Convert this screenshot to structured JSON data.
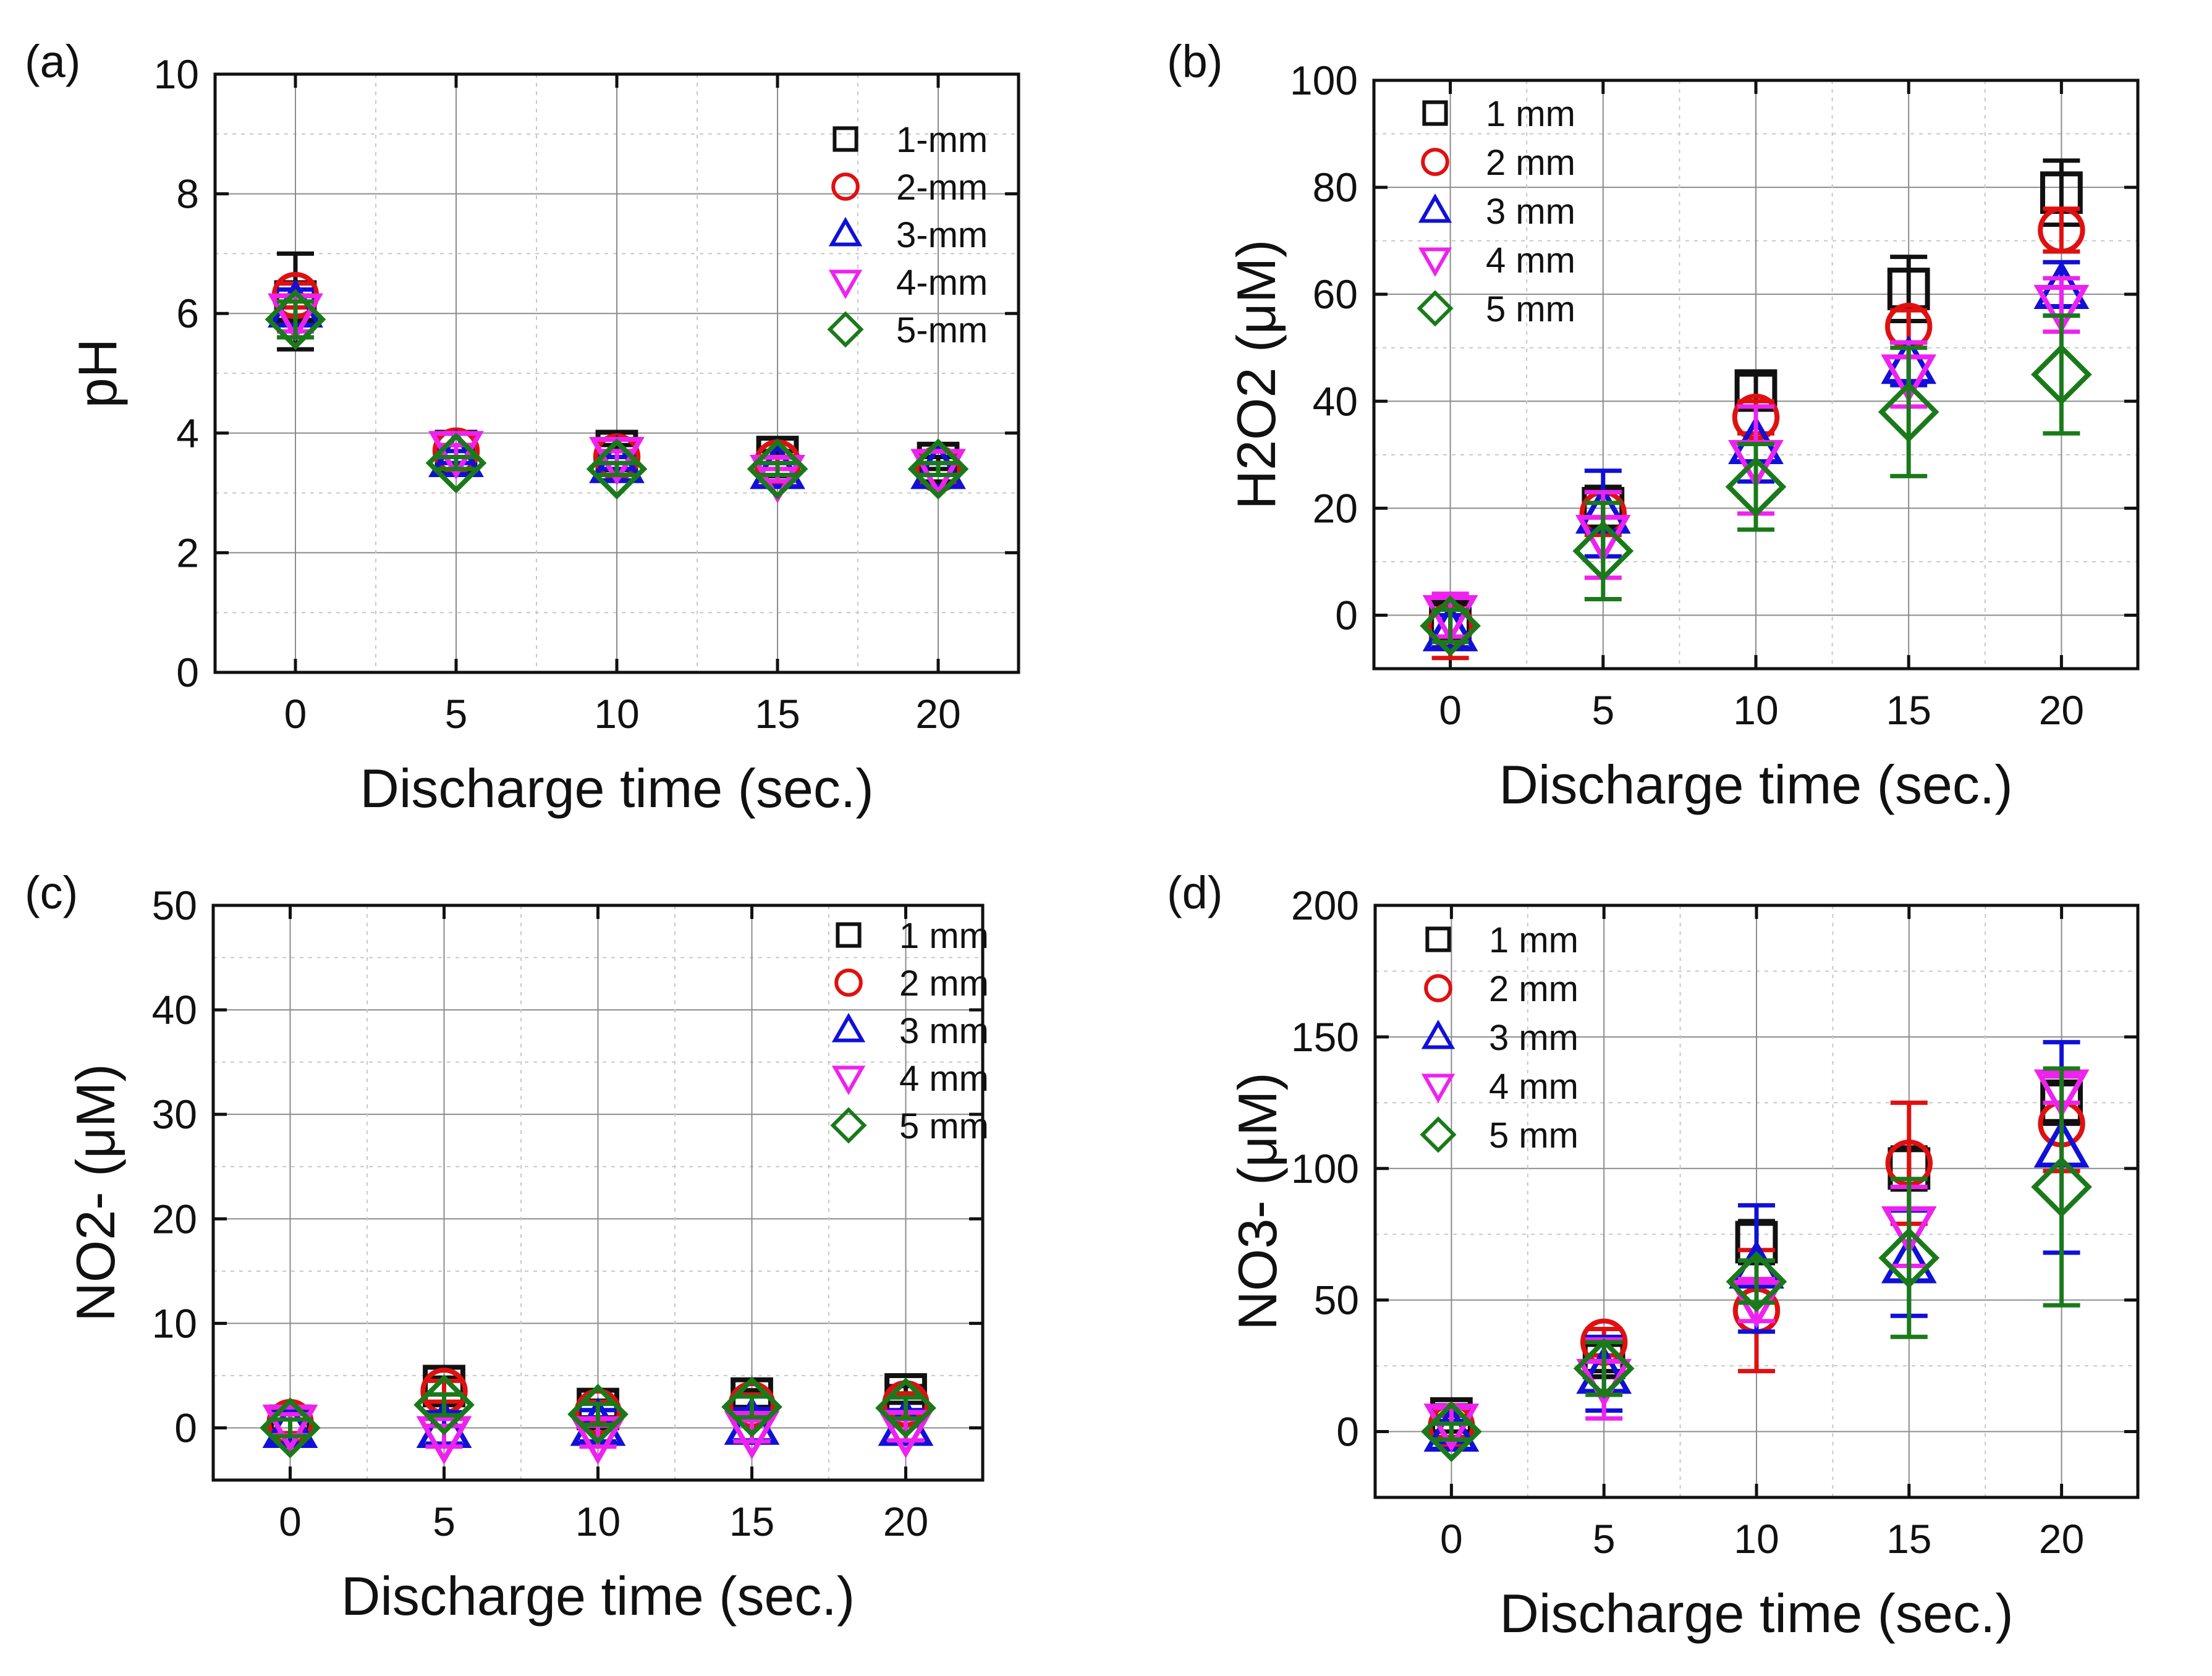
{
  "figure": {
    "palette": {
      "black": "#111111",
      "red": "#e01010",
      "blue": "#1010d8",
      "magenta": "#ee22ee",
      "green": "#1a7a1a",
      "grid_major": "#8c8c8c",
      "grid_minor": "#c8c8c8"
    }
  },
  "chart_data": [
    {
      "panel_label": "(a)",
      "type": "scatter",
      "xlabel": "Discharge time (sec.)",
      "ylabel": "pH",
      "x": [
        0,
        5,
        10,
        15,
        20
      ],
      "xticks": [
        "0",
        "5",
        "10",
        "15",
        "20"
      ],
      "xlim": [
        -2.5,
        22.5
      ],
      "ylim": [
        0,
        10
      ],
      "yticks": [
        "0",
        "2",
        "4",
        "6",
        "8",
        "10"
      ],
      "ytick_values": [
        0,
        2,
        4,
        6,
        8,
        10
      ],
      "grid": true,
      "legend_position": "top-right",
      "series": [
        {
          "name": "1-mm",
          "marker": "square",
          "color": "#111111",
          "values": [
            6.2,
            3.7,
            3.7,
            3.6,
            3.5
          ],
          "errors": [
            0.8,
            0.1,
            0.1,
            0.1,
            0.1
          ]
        },
        {
          "name": "2-mm",
          "marker": "circle",
          "color": "#e01010",
          "values": [
            6.3,
            3.7,
            3.6,
            3.5,
            3.4
          ],
          "errors": [
            0.2,
            0.1,
            0.1,
            0.1,
            0.1
          ]
        },
        {
          "name": "3-mm",
          "marker": "triangle-up",
          "color": "#1010d8",
          "values": [
            6.1,
            3.6,
            3.5,
            3.4,
            3.4
          ],
          "errors": [
            0.3,
            0.1,
            0.1,
            0.1,
            0.1
          ]
        },
        {
          "name": "4-mm",
          "marker": "triangle-down",
          "color": "#ee22ee",
          "values": [
            6.0,
            3.7,
            3.6,
            3.3,
            3.4
          ],
          "errors": [
            0.3,
            0.1,
            0.1,
            0.1,
            0.1
          ]
        },
        {
          "name": "5-mm",
          "marker": "diamond",
          "color": "#1a7a1a",
          "values": [
            5.9,
            3.5,
            3.4,
            3.4,
            3.4
          ],
          "errors": [
            0.3,
            0.1,
            0.1,
            0.1,
            0.1
          ]
        }
      ]
    },
    {
      "panel_label": "(b)",
      "type": "scatter",
      "xlabel": "Discharge time (sec.)",
      "ylabel": "H2O2 (μM)",
      "x": [
        0,
        5,
        10,
        15,
        20
      ],
      "xticks": [
        "0",
        "5",
        "10",
        "15",
        "20"
      ],
      "xlim": [
        -2.5,
        22.5
      ],
      "ylim": [
        -10,
        100
      ],
      "yticks": [
        "0",
        "20",
        "40",
        "60",
        "80",
        "100"
      ],
      "ytick_values": [
        0,
        20,
        40,
        60,
        80,
        100
      ],
      "grid": true,
      "legend_position": "top-left",
      "series": [
        {
          "name": "1 mm",
          "marker": "square",
          "color": "#111111",
          "values": [
            -1,
            20,
            42,
            61,
            79
          ],
          "errors": [
            3,
            4,
            3,
            6,
            6
          ]
        },
        {
          "name": "2 mm",
          "marker": "circle",
          "color": "#e01010",
          "values": [
            -2,
            19,
            37,
            54,
            72
          ],
          "errors": [
            6,
            4,
            3,
            3,
            4
          ]
        },
        {
          "name": "3 mm",
          "marker": "triangle-up",
          "color": "#1010d8",
          "values": [
            -3,
            19,
            32,
            47,
            61
          ],
          "errors": [
            3,
            8,
            7,
            4,
            5
          ]
        },
        {
          "name": "4 mm",
          "marker": "triangle-down",
          "color": "#ee22ee",
          "values": [
            0,
            15,
            29,
            45,
            58
          ],
          "errors": [
            4,
            8,
            10,
            6,
            5
          ]
        },
        {
          "name": "5 mm",
          "marker": "diamond",
          "color": "#1a7a1a",
          "values": [
            -2,
            12,
            24,
            38,
            45
          ],
          "errors": [
            3,
            9,
            8,
            12,
            11
          ]
        }
      ]
    },
    {
      "panel_label": "(c)",
      "type": "scatter",
      "xlabel": "Discharge time (sec.)",
      "ylabel": "NO2- (μM)",
      "x": [
        0,
        5,
        10,
        15,
        20
      ],
      "xticks": [
        "0",
        "5",
        "10",
        "15",
        "20"
      ],
      "xlim": [
        -2.5,
        22.5
      ],
      "ylim": [
        -5,
        50
      ],
      "yticks": [
        "0",
        "10",
        "20",
        "30",
        "40",
        "50"
      ],
      "ytick_values": [
        0,
        10,
        20,
        30,
        40,
        50
      ],
      "grid": true,
      "legend_position": "top-right",
      "series": [
        {
          "name": "1 mm",
          "marker": "square",
          "color": "#111111",
          "values": [
            0.2,
            4.0,
            1.8,
            2.8,
            3.2
          ],
          "errors": [
            1.5,
            0.8,
            0.8,
            0.8,
            0.8
          ]
        },
        {
          "name": "2 mm",
          "marker": "circle",
          "color": "#e01010",
          "values": [
            0.5,
            3.5,
            1.5,
            2.2,
            2.3
          ],
          "errors": [
            1.0,
            1.0,
            1.0,
            1.0,
            1.0
          ]
        },
        {
          "name": "3 mm",
          "marker": "triangle-up",
          "color": "#1010d8",
          "values": [
            0.0,
            0.0,
            0.2,
            0.3,
            0.2
          ],
          "errors": [
            1.5,
            1.5,
            1.5,
            1.5,
            1.5
          ]
        },
        {
          "name": "4 mm",
          "marker": "triangle-down",
          "color": "#ee22ee",
          "values": [
            0.3,
            -0.8,
            -0.8,
            -0.3,
            -0.2
          ],
          "errors": [
            1.0,
            1.0,
            1.0,
            1.0,
            1.0
          ]
        },
        {
          "name": "5 mm",
          "marker": "diamond",
          "color": "#1a7a1a",
          "values": [
            0.0,
            2.2,
            1.3,
            2.0,
            1.9
          ],
          "errors": [
            0.8,
            1.0,
            1.0,
            1.0,
            1.0
          ]
        }
      ]
    },
    {
      "panel_label": "(d)",
      "type": "scatter",
      "xlabel": "Discharge time (sec.)",
      "ylabel": "NO3- (μM)",
      "x": [
        0,
        5,
        10,
        15,
        20
      ],
      "xticks": [
        "0",
        "5",
        "10",
        "15",
        "20"
      ],
      "xlim": [
        -2.5,
        22.5
      ],
      "ylim": [
        -25,
        200
      ],
      "yticks": [
        "0",
        "50",
        "100",
        "150",
        "200"
      ],
      "ytick_values": [
        0,
        50,
        100,
        150,
        200
      ],
      "grid": true,
      "legend_position": "top-left",
      "series": [
        {
          "name": "1 mm",
          "marker": "square",
          "color": "#111111",
          "values": [
            5,
            28,
            72,
            100,
            125
          ],
          "errors": [
            5,
            5,
            8,
            8,
            8
          ]
        },
        {
          "name": "2 mm",
          "marker": "circle",
          "color": "#e01010",
          "values": [
            2,
            34,
            46,
            102,
            117
          ],
          "errors": [
            4,
            5,
            23,
            23,
            18
          ]
        },
        {
          "name": "3 mm",
          "marker": "triangle-up",
          "color": "#1010d8",
          "values": [
            0,
            22,
            62,
            64,
            108
          ],
          "errors": [
            4,
            14,
            24,
            20,
            40
          ]
        },
        {
          "name": "4 mm",
          "marker": "triangle-down",
          "color": "#ee22ee",
          "values": [
            3,
            20,
            50,
            78,
            130
          ],
          "errors": [
            6,
            15,
            8,
            15,
            5
          ]
        },
        {
          "name": "5 mm",
          "marker": "diamond",
          "color": "#1a7a1a",
          "values": [
            0,
            24,
            57,
            66,
            93
          ],
          "errors": [
            3,
            10,
            8,
            30,
            45
          ]
        }
      ]
    }
  ]
}
